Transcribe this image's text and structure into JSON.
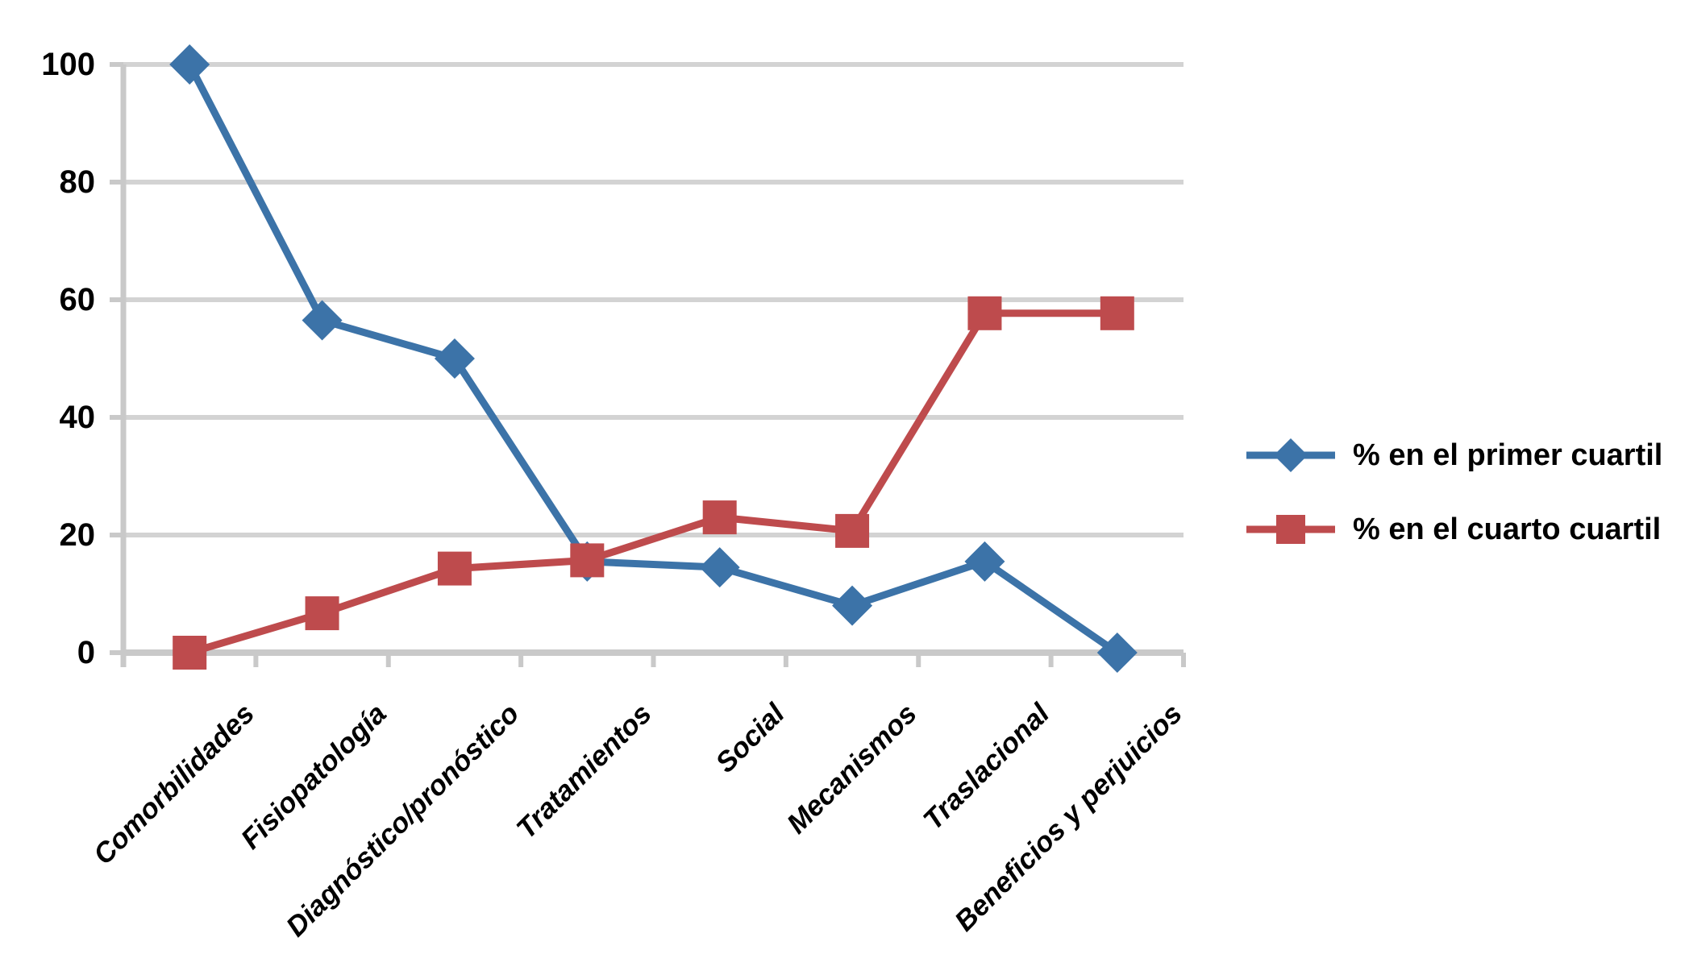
{
  "chart_data": {
    "type": "line",
    "title": "",
    "xlabel": "",
    "ylabel": "",
    "categories": [
      "Comorbilidades",
      "Fisiopatología",
      "Diagnóstico/pronóstico",
      "Tratamientos",
      "Social",
      "Mecanismos",
      "Traslacional",
      "Beneficios y perjuicios"
    ],
    "series": [
      {
        "name": "% en el primer cuartil",
        "marker": "diamond",
        "color": "#3C73A8",
        "values": [
          100,
          56.5,
          50,
          15.5,
          14.5,
          8,
          15.5,
          0
        ]
      },
      {
        "name": "% en el cuarto cuartil",
        "marker": "square",
        "color": "#BE4B4D",
        "values": [
          0,
          6.7,
          14.3,
          15.7,
          23,
          20.7,
          57.7,
          57.7
        ]
      }
    ],
    "ylim": [
      0,
      100
    ],
    "yticks": [
      0,
      20,
      40,
      60,
      80,
      100
    ],
    "grid": "horizontal",
    "legend_position": "right-middle",
    "colors": {
      "gridline": "#D3D3D3",
      "axis": "#C9C9C9",
      "tick_label": "#000000",
      "background": "#FFFFFF"
    }
  }
}
